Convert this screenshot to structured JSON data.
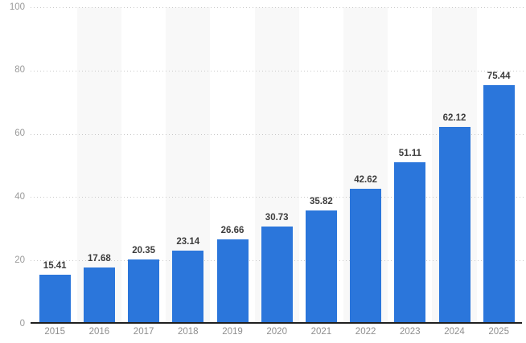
{
  "chart_data": {
    "type": "bar",
    "title": "",
    "xlabel": "",
    "ylabel": "",
    "categories": [
      "2015",
      "2016",
      "2017",
      "2018",
      "2019",
      "2020",
      "2021",
      "2022",
      "2023",
      "2024",
      "2025"
    ],
    "values": [
      15.41,
      17.68,
      20.35,
      23.14,
      26.66,
      30.73,
      35.82,
      42.62,
      51.11,
      62.12,
      75.44
    ],
    "value_labels": [
      "15.41",
      "17.68",
      "20.35",
      "23.14",
      "26.66",
      "30.73",
      "35.82",
      "42.62",
      "51.11",
      "62.12",
      "75.44"
    ],
    "ylim": [
      0,
      100
    ],
    "yticks": [
      0,
      20,
      40,
      60,
      80,
      100
    ],
    "ytick_labels": [
      "0",
      "20",
      "40",
      "60",
      "80",
      "100"
    ],
    "grid": "horizontal-dotted",
    "legend": "none",
    "striped_columns": [
      1,
      3,
      5,
      7,
      9
    ],
    "colors": {
      "bar": "#2b76db",
      "value_label": "#3d3d3d",
      "tick_label": "#9a9a9a",
      "category_label": "#8f8f8f",
      "gridline": "#c9c9c9",
      "stripe": "#f8f8f8",
      "axis_line": "#1f1f1f",
      "background": "#ffffff"
    }
  }
}
